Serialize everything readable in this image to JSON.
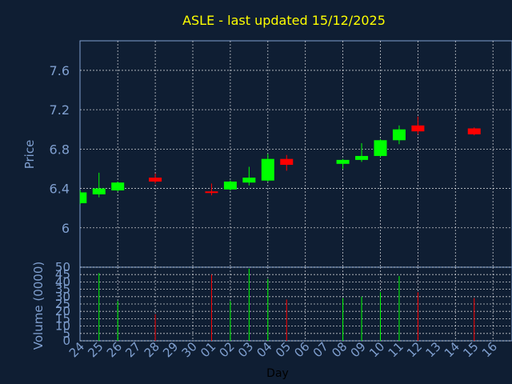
{
  "chart_data": [
    {
      "type": "candlestick",
      "title": "ASLE - last updated 15/12/2025",
      "ylabel": "Price",
      "ylim": [
        5.6,
        7.9
      ],
      "yticks": [
        "6",
        "6.4",
        "6.8",
        "7.2",
        "7.6"
      ],
      "grid": true,
      "colors": {
        "up": "#00ff00",
        "down": "#ff0000",
        "title": "#ffff00",
        "axis_text": "#7f9fcf",
        "background": "#0f1e33"
      },
      "days": [
        "24",
        "25",
        "26",
        "27",
        "28",
        "29",
        "30",
        "01",
        "02",
        "03",
        "04",
        "05",
        "06",
        "07",
        "08",
        "09",
        "10",
        "11",
        "12",
        "13",
        "14",
        "15",
        "16"
      ],
      "candles": [
        {
          "day": "24",
          "open": 6.25,
          "close": 6.36,
          "high": 6.38,
          "low": 6.24
        },
        {
          "day": "25",
          "open": 6.34,
          "close": 6.4,
          "high": 6.56,
          "low": 6.31
        },
        {
          "day": "26",
          "open": 6.38,
          "close": 6.46,
          "high": 6.47,
          "low": 6.37
        },
        {
          "day": "28",
          "open": 6.51,
          "close": 6.47,
          "high": 6.55,
          "low": 6.45
        },
        {
          "day": "01",
          "open": 6.37,
          "close": 6.36,
          "high": 6.45,
          "low": 6.33
        },
        {
          "day": "02",
          "open": 6.39,
          "close": 6.47,
          "high": 6.48,
          "low": 6.38
        },
        {
          "day": "03",
          "open": 6.46,
          "close": 6.51,
          "high": 6.62,
          "low": 6.43
        },
        {
          "day": "04",
          "open": 6.48,
          "close": 6.7,
          "high": 6.75,
          "low": 6.47
        },
        {
          "day": "05",
          "open": 6.7,
          "close": 6.64,
          "high": 6.74,
          "low": 6.58
        },
        {
          "day": "08",
          "open": 6.65,
          "close": 6.69,
          "high": 6.7,
          "low": 6.6
        },
        {
          "day": "09",
          "open": 6.69,
          "close": 6.73,
          "high": 6.86,
          "low": 6.67
        },
        {
          "day": "10",
          "open": 6.73,
          "close": 6.89,
          "high": 6.9,
          "low": 6.72
        },
        {
          "day": "11",
          "open": 6.89,
          "close": 7.0,
          "high": 7.04,
          "low": 6.85
        },
        {
          "day": "12",
          "open": 7.04,
          "close": 6.98,
          "high": 7.13,
          "low": 6.95
        },
        {
          "day": "15",
          "open": 7.01,
          "close": 6.95,
          "high": 7.02,
          "low": 6.94
        }
      ]
    },
    {
      "type": "bar",
      "ylabel": "Volume (0000)",
      "xlabel": "Day",
      "ylim": [
        0,
        50
      ],
      "yticks": [
        "0",
        "5",
        "10",
        "15",
        "20",
        "25",
        "30",
        "35",
        "40",
        "45",
        "50"
      ],
      "grid": true,
      "bars": [
        {
          "day": "25",
          "value": 46,
          "color": "#00ff00"
        },
        {
          "day": "26",
          "value": 27,
          "color": "#00ff00"
        },
        {
          "day": "28",
          "value": 18,
          "color": "#ff0000"
        },
        {
          "day": "01",
          "value": 45,
          "color": "#ff0000"
        },
        {
          "day": "02",
          "value": 27,
          "color": "#00ff00"
        },
        {
          "day": "03",
          "value": 49,
          "color": "#00ff00"
        },
        {
          "day": "04",
          "value": 42,
          "color": "#00ff00"
        },
        {
          "day": "05",
          "value": 28,
          "color": "#ff0000"
        },
        {
          "day": "08",
          "value": 29,
          "color": "#00ff00"
        },
        {
          "day": "09",
          "value": 30,
          "color": "#00ff00"
        },
        {
          "day": "10",
          "value": 33,
          "color": "#00ff00"
        },
        {
          "day": "11",
          "value": 44,
          "color": "#00ff00"
        },
        {
          "day": "12",
          "value": 33,
          "color": "#ff0000"
        },
        {
          "day": "15",
          "value": 29,
          "color": "#ff0000"
        }
      ]
    }
  ]
}
